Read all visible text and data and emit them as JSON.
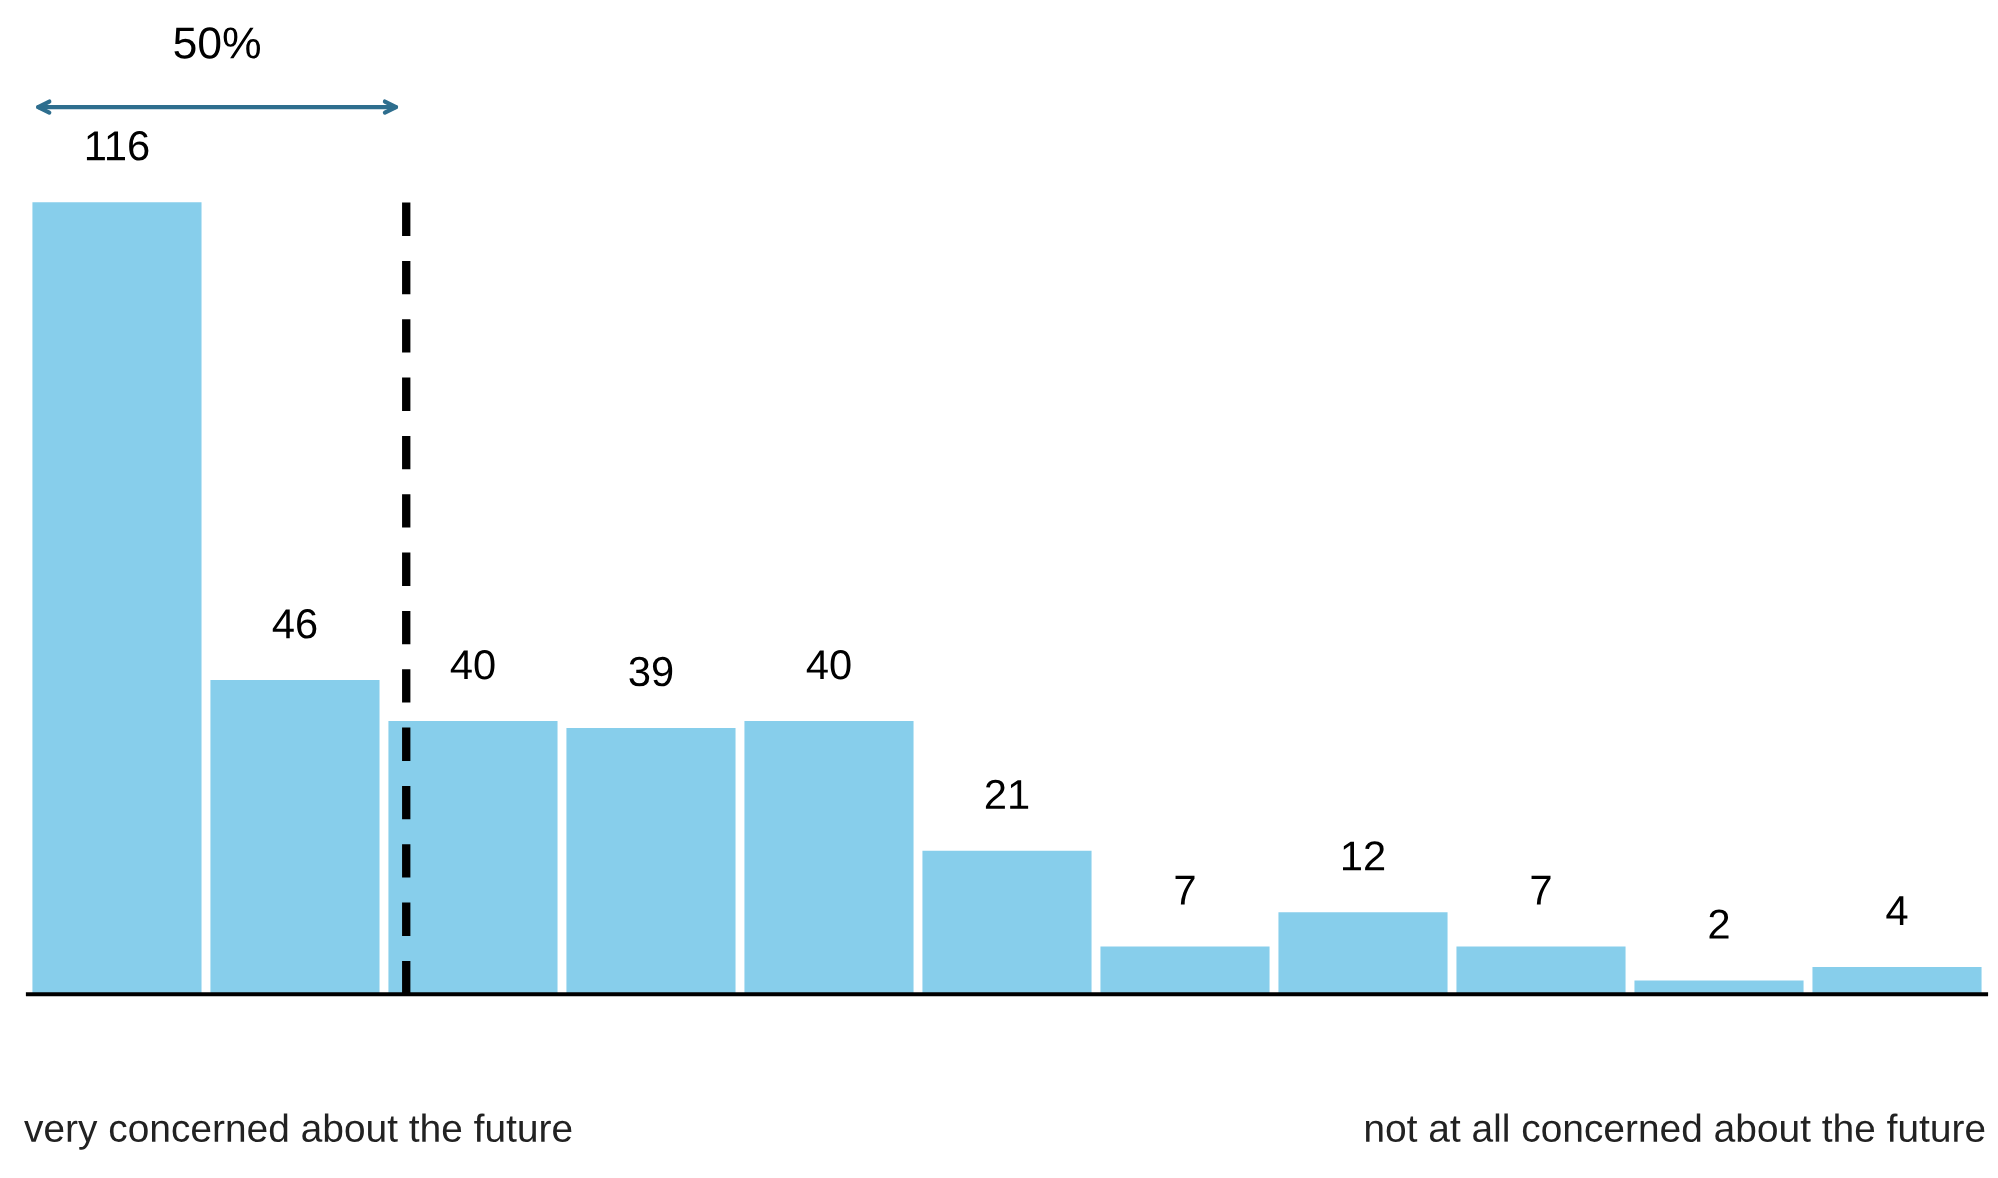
{
  "chart_data": {
    "type": "bar",
    "categories": [
      null,
      null,
      null,
      null,
      null,
      null,
      null,
      null,
      null,
      null,
      null
    ],
    "values": [
      116,
      46,
      40,
      39,
      40,
      21,
      7,
      12,
      7,
      2,
      4
    ],
    "color": "#87ceeb",
    "data_labels": true,
    "grid": false,
    "legend": false,
    "annotations": [
      "50%",
      "very concerned about the future",
      "not at all concerned about the future"
    ]
  }
}
